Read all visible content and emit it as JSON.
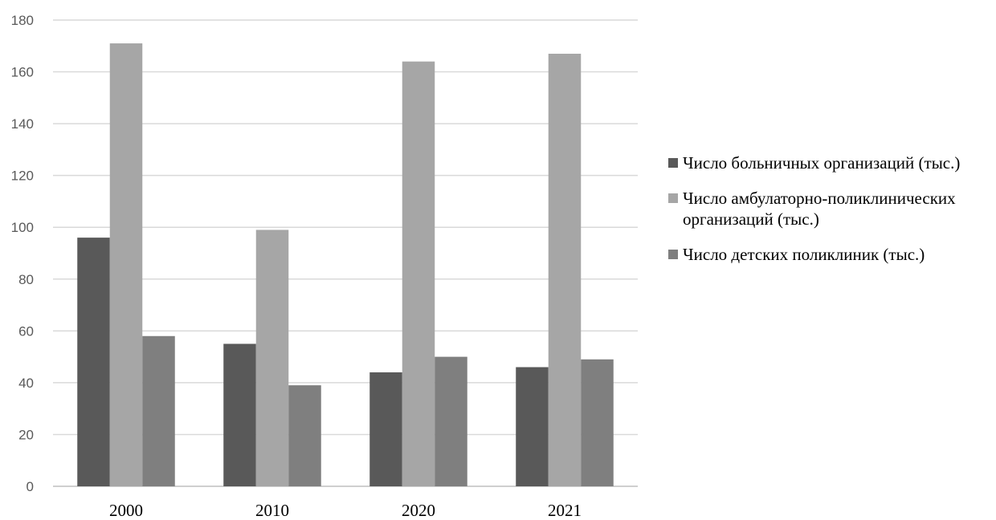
{
  "chart_data": {
    "type": "bar",
    "title": "",
    "xlabel": "",
    "ylabel": "",
    "categories": [
      "2000",
      "2010",
      "2020",
      "2021"
    ],
    "ylim": [
      0,
      180
    ],
    "yticks": [
      0,
      20,
      40,
      60,
      80,
      100,
      120,
      140,
      160,
      180
    ],
    "grid": true,
    "legend_position": "right",
    "series": [
      {
        "name": "Число больничных организаций (тыс.)",
        "values": [
          96,
          55,
          44,
          46
        ],
        "color": "#595959"
      },
      {
        "name": "Число амбулаторно-поликлинических организаций (тыс.)",
        "values": [
          171,
          99,
          164,
          167
        ],
        "color": "#a6a6a6"
      },
      {
        "name": "Число детских поликлиник (тыс.)",
        "values": [
          58,
          39,
          50,
          49
        ],
        "color": "#7f7f7f"
      }
    ]
  }
}
